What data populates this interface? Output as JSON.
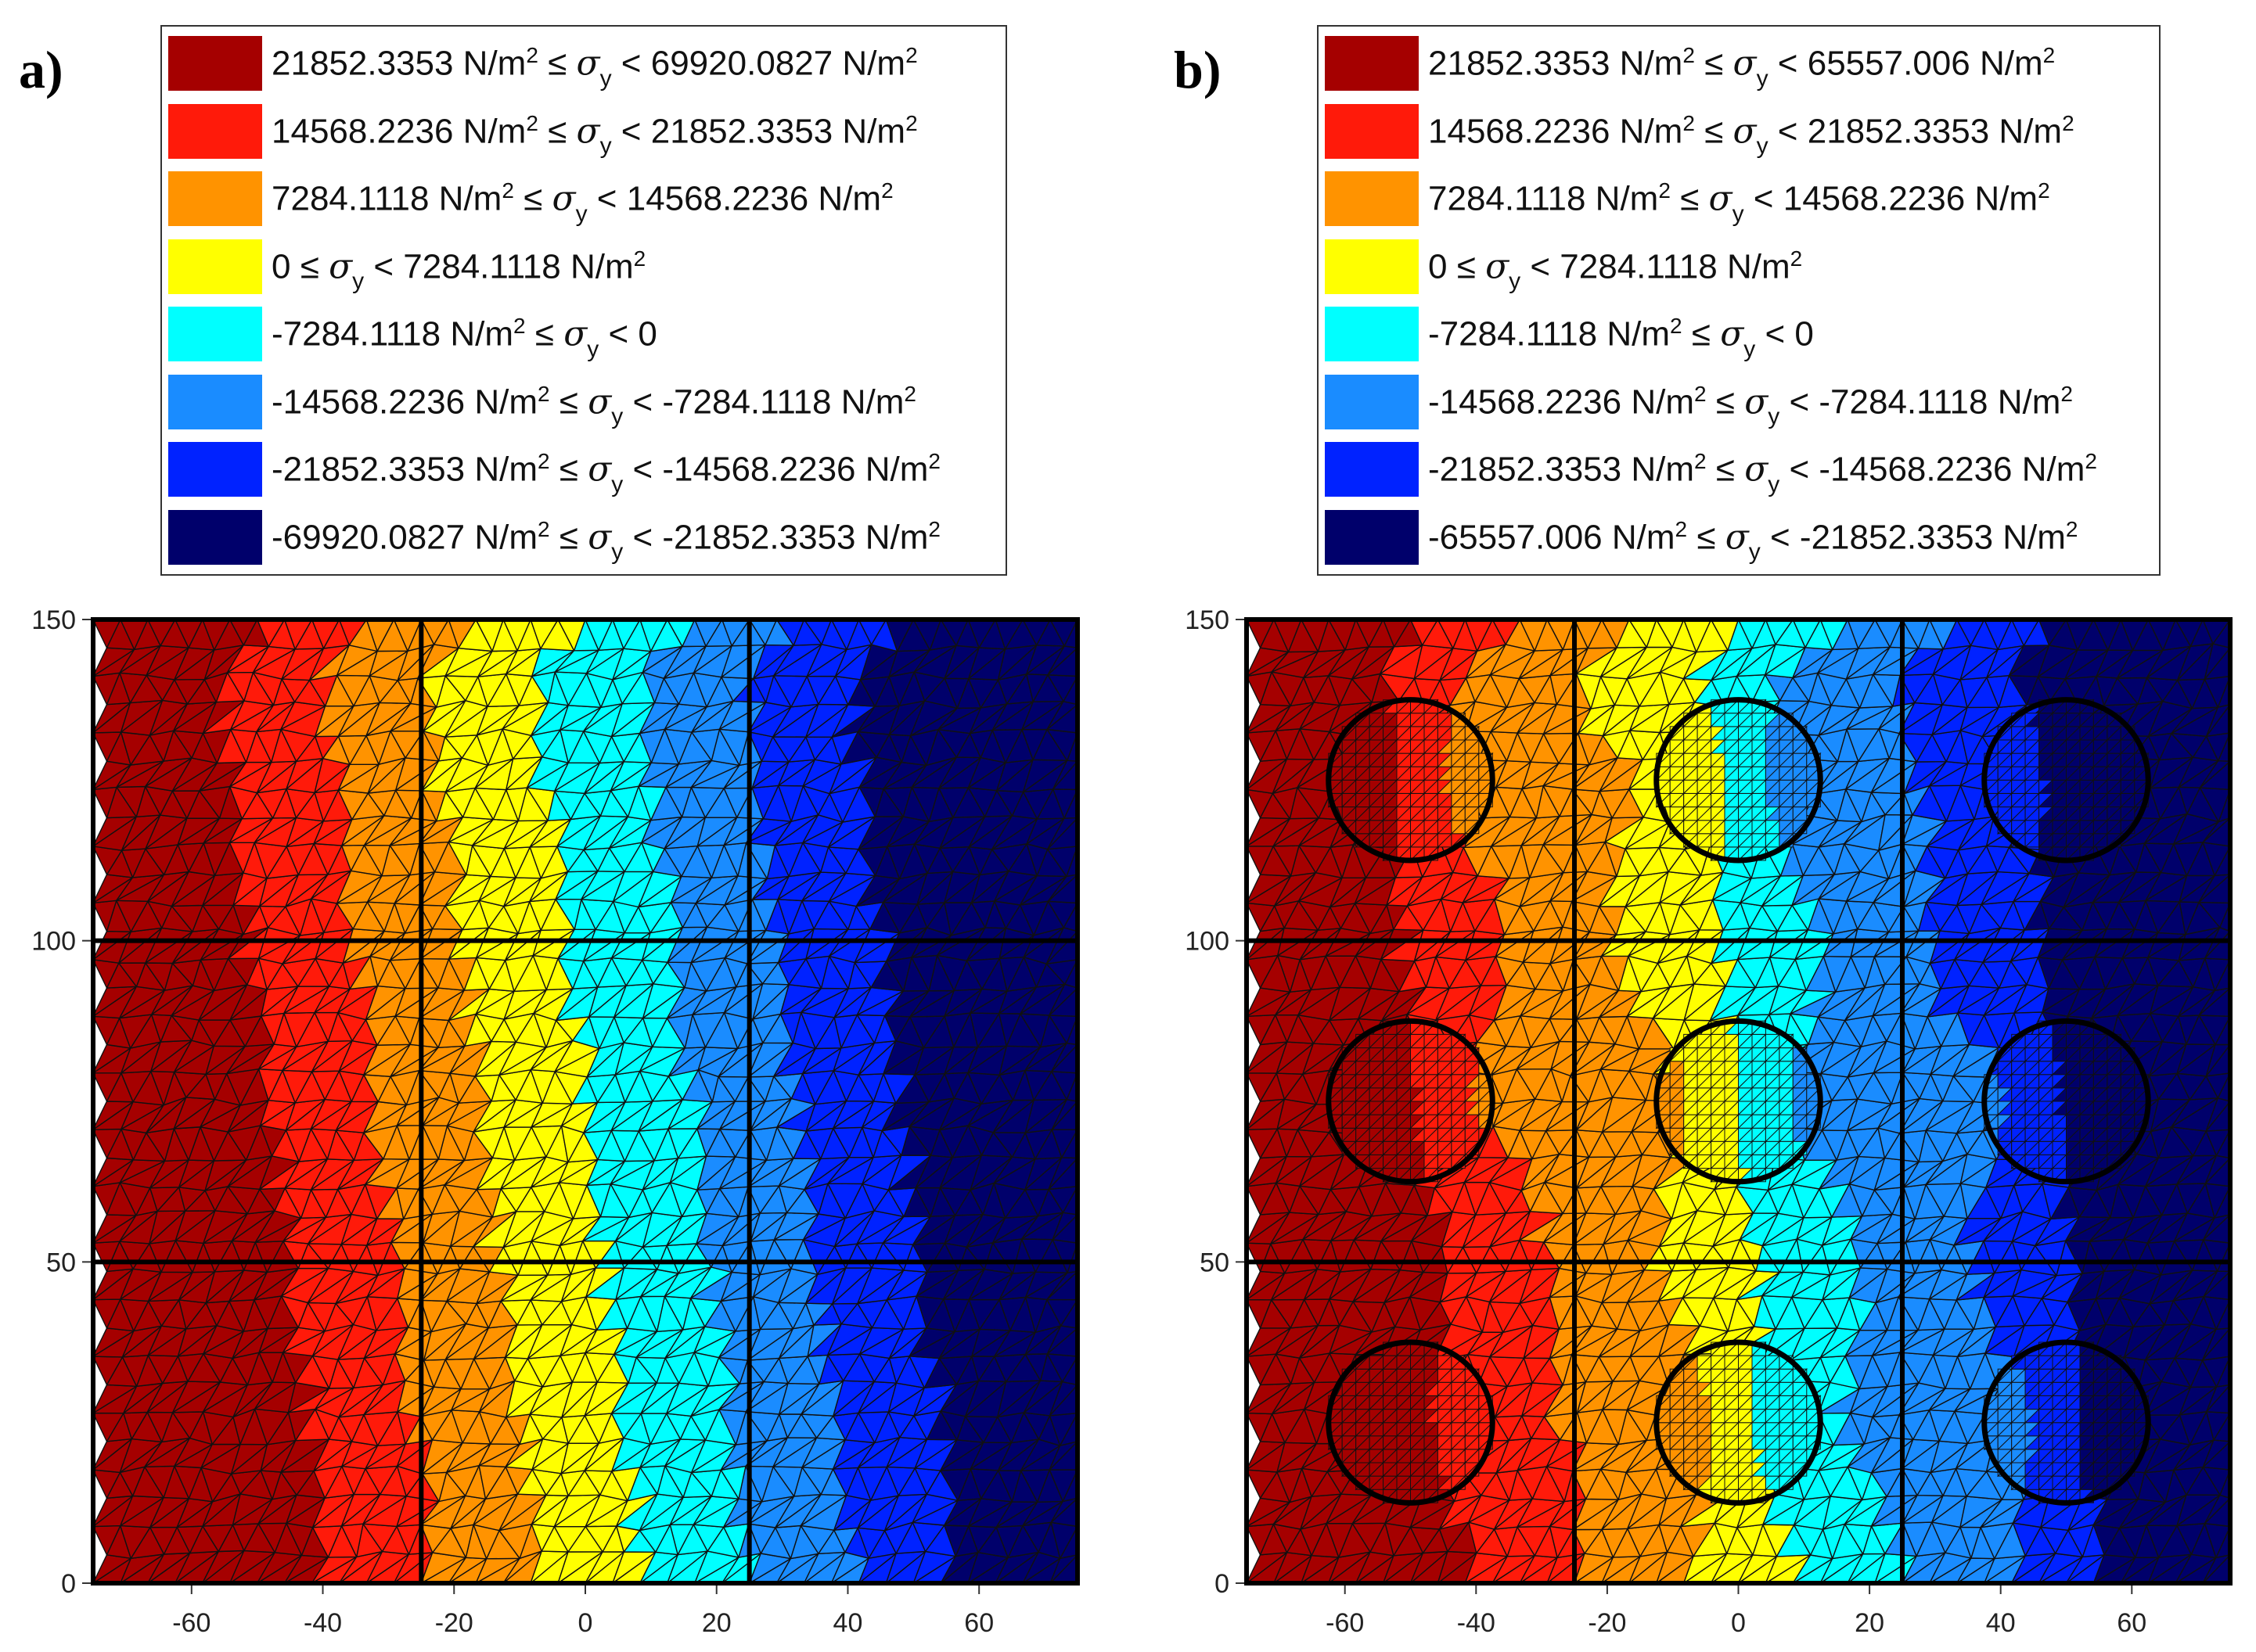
{
  "colors": {
    "band_21852_max": "#a50000",
    "band_14568_21852": "#ff1a0a",
    "band_7284_14568": "#ff9300",
    "band_0_7284": "#ffff00",
    "band_m7284_0": "#00ffff",
    "band_m14568_m7284": "#1a8cff",
    "band_m21852_m14568": "#0022ff",
    "band_min_m21852": "#00006b",
    "mesh": "#111111",
    "inclusion": "#000000"
  },
  "chart_data": [
    {
      "type": "heatmap",
      "panel_label": "a)",
      "title": "",
      "xlabel": "",
      "ylabel": "",
      "xlim": [
        -75,
        75
      ],
      "ylim": [
        0,
        150
      ],
      "xticks": [
        "-60",
        "-40",
        "-20",
        "0",
        "20",
        "40",
        "60"
      ],
      "xtick_values": [
        -60,
        -40,
        -20,
        0,
        20,
        40,
        60
      ],
      "yticks": [
        "0",
        "50",
        "100",
        "150"
      ],
      "ytick_values": [
        0,
        50,
        100,
        150
      ],
      "cell_grid_lines_x": [
        -25,
        25
      ],
      "cell_grid_lines_y": [
        50,
        100
      ],
      "inclusions": [],
      "legend": [
        {
          "color_key": "band_21852_max",
          "lo": "21852.3353 N/m",
          "rel1": " ≤ ",
          "sym": "σ",
          "sub": "y",
          "rel2": " < ",
          "hi": "69920.0827 N/m",
          "hi_sup": "2",
          "lo_sup": "2"
        },
        {
          "color_key": "band_14568_21852",
          "lo": "14568.2236 N/m",
          "rel1": " ≤ ",
          "sym": "σ",
          "sub": "y",
          "rel2": " < ",
          "hi": "21852.3353 N/m",
          "hi_sup": "2",
          "lo_sup": "2"
        },
        {
          "color_key": "band_7284_14568",
          "lo": "7284.1118 N/m",
          "rel1": " ≤ ",
          "sym": "σ",
          "sub": "y",
          "rel2": " < ",
          "hi": "14568.2236 N/m",
          "hi_sup": "2",
          "lo_sup": "2"
        },
        {
          "color_key": "band_0_7284",
          "lo": "0",
          "rel1": " ≤ ",
          "sym": "σ",
          "sub": "y",
          "rel2": " < ",
          "hi": "7284.1118 N/m",
          "hi_sup": "2",
          "lo_sup": ""
        },
        {
          "color_key": "band_m7284_0",
          "lo": "-7284.1118 N/m",
          "rel1": " ≤ ",
          "sym": "σ",
          "sub": "y",
          "rel2": " < ",
          "hi": "0",
          "hi_sup": "",
          "lo_sup": "2"
        },
        {
          "color_key": "band_m14568_m7284",
          "lo": "-14568.2236 N/m",
          "rel1": " ≤ ",
          "sym": "σ",
          "sub": "y",
          "rel2": " < ",
          "hi": "-7284.1118 N/m",
          "hi_sup": "2",
          "lo_sup": "2"
        },
        {
          "color_key": "band_m21852_m14568",
          "lo": "-21852.3353 N/m",
          "rel1": " ≤ ",
          "sym": "σ",
          "sub": "y",
          "rel2": " < ",
          "hi": "-14568.2236 N/m",
          "hi_sup": "2",
          "lo_sup": "2"
        },
        {
          "color_key": "band_min_m21852",
          "lo": "-69920.0827 N/m",
          "rel1": " ≤ ",
          "sym": "σ",
          "sub": "y",
          "rel2": " < ",
          "hi": "-21852.3353 N/m",
          "hi_sup": "2",
          "lo_sup": "2"
        }
      ]
    },
    {
      "type": "heatmap",
      "panel_label": "b)",
      "title": "",
      "xlabel": "",
      "ylabel": "",
      "xlim": [
        -75,
        75
      ],
      "ylim": [
        0,
        150
      ],
      "xticks": [
        "-60",
        "-40",
        "-20",
        "0",
        "20",
        "40",
        "60"
      ],
      "xtick_values": [
        -60,
        -40,
        -20,
        0,
        20,
        40,
        60
      ],
      "yticks": [
        "0",
        "50",
        "100",
        "150"
      ],
      "ytick_values": [
        0,
        50,
        100,
        150
      ],
      "cell_grid_lines_x": [
        -25,
        25
      ],
      "cell_grid_lines_y": [
        50,
        100
      ],
      "inclusions": [
        {
          "cx": -50,
          "cy": 125,
          "r": 12.5
        },
        {
          "cx": 0,
          "cy": 125,
          "r": 12.5
        },
        {
          "cx": 50,
          "cy": 125,
          "r": 12.5
        },
        {
          "cx": -50,
          "cy": 75,
          "r": 12.5
        },
        {
          "cx": 0,
          "cy": 75,
          "r": 12.5
        },
        {
          "cx": 50,
          "cy": 75,
          "r": 12.5
        },
        {
          "cx": -50,
          "cy": 25,
          "r": 12.5
        },
        {
          "cx": 0,
          "cy": 25,
          "r": 12.5
        },
        {
          "cx": 50,
          "cy": 25,
          "r": 12.5
        }
      ],
      "legend": [
        {
          "color_key": "band_21852_max",
          "lo": "21852.3353 N/m",
          "rel1": " ≤ ",
          "sym": "σ",
          "sub": "y",
          "rel2": " < ",
          "hi": "65557.006 N/m",
          "hi_sup": "2",
          "lo_sup": "2"
        },
        {
          "color_key": "band_14568_21852",
          "lo": "14568.2236 N/m",
          "rel1": " ≤ ",
          "sym": "σ",
          "sub": "y",
          "rel2": " < ",
          "hi": "21852.3353 N/m",
          "hi_sup": "2",
          "lo_sup": "2"
        },
        {
          "color_key": "band_7284_14568",
          "lo": "7284.1118 N/m",
          "rel1": " ≤ ",
          "sym": "σ",
          "sub": "y",
          "rel2": " < ",
          "hi": "14568.2236 N/m",
          "hi_sup": "2",
          "lo_sup": "2"
        },
        {
          "color_key": "band_0_7284",
          "lo": "0",
          "rel1": " ≤ ",
          "sym": "σ",
          "sub": "y",
          "rel2": " < ",
          "hi": "7284.1118 N/m",
          "hi_sup": "2",
          "lo_sup": ""
        },
        {
          "color_key": "band_m7284_0",
          "lo": "-7284.1118 N/m",
          "rel1": " ≤ ",
          "sym": "σ",
          "sub": "y",
          "rel2": " < ",
          "hi": "0",
          "hi_sup": "",
          "lo_sup": "2"
        },
        {
          "color_key": "band_m14568_m7284",
          "lo": "-14568.2236 N/m",
          "rel1": " ≤ ",
          "sym": "σ",
          "sub": "y",
          "rel2": " < ",
          "hi": "-7284.1118 N/m",
          "hi_sup": "2",
          "lo_sup": "2"
        },
        {
          "color_key": "band_m21852_m14568",
          "lo": "-21852.3353 N/m",
          "rel1": " ≤ ",
          "sym": "σ",
          "sub": "y",
          "rel2": " < ",
          "hi": "-14568.2236 N/m",
          "hi_sup": "2",
          "lo_sup": "2"
        },
        {
          "color_key": "band_min_m21852",
          "lo": "-65557.006 N/m",
          "rel1": " ≤ ",
          "sym": "σ",
          "sub": "y",
          "rel2": " < ",
          "hi": "-21852.3353 N/m",
          "hi_sup": "2",
          "lo_sup": "2"
        }
      ]
    }
  ]
}
